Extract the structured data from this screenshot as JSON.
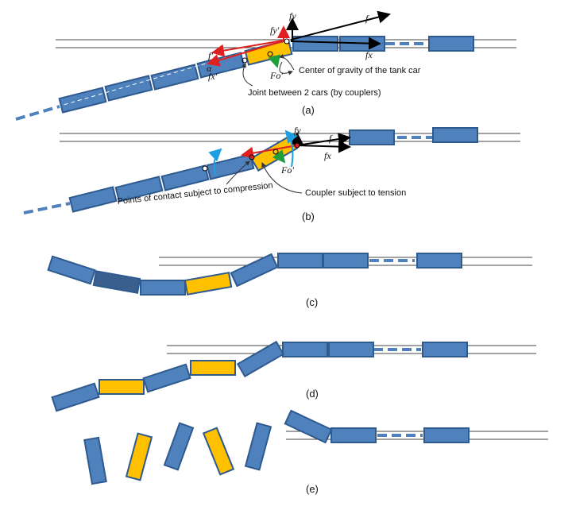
{
  "colors": {
    "car": "#4f81bd",
    "car_stroke": "#2e5a8f",
    "tank_car": "#ffc000",
    "dark_car": "#3a5f8f",
    "force_red": "#e02020",
    "force_green": "#1e9e3c",
    "arrow_blue": "#1ea0e0"
  },
  "panel_a": {
    "caption": "(a)",
    "cg_label": "Center of gravity of the tank car",
    "joint_label": "Joint between 2 cars (by couplers)",
    "forces": {
      "f": "f",
      "fx": "fx",
      "fy": "fy",
      "fy_prime": "fy'",
      "fx_prime": "fx'",
      "f_prime": "f'",
      "alpha": "α",
      "fo_prime": "Fo'"
    }
  },
  "panel_b": {
    "caption": "(b)",
    "compression_label": "Points of contact subject to compression",
    "tension_label": "Coupler subject to tension",
    "forces": {
      "f": "f",
      "fx": "fx",
      "fy": "fy",
      "fo_prime": "Fo'"
    }
  },
  "panel_c": {
    "caption": "(c)"
  },
  "panel_d": {
    "caption": "(d)"
  },
  "panel_e": {
    "caption": "(e)"
  }
}
